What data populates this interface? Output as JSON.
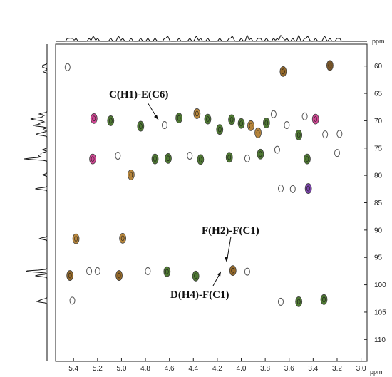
{
  "chart_data": {
    "type": "heatmap",
    "title": "",
    "xlabel": "ppm",
    "ylabel": "ppm",
    "x_axis": {
      "range": [
        5.55,
        2.95
      ],
      "reversed": true,
      "ticks": [
        5.4,
        5.2,
        5.0,
        4.8,
        4.6,
        4.4,
        4.2,
        4.0,
        3.8,
        3.6,
        3.4,
        3.2,
        3.0
      ]
    },
    "y_axis": {
      "range": [
        56,
        114
      ],
      "reversed": true,
      "ticks": [
        60,
        65,
        70,
        75,
        80,
        85,
        90,
        95,
        100,
        105,
        110
      ]
    },
    "grid": false,
    "cross_peaks": [
      {
        "h": 5.45,
        "c": 60.2,
        "color": "#7a7a7a"
      },
      {
        "h": 3.65,
        "c": 61.0,
        "color": "#8b5a14"
      },
      {
        "h": 3.26,
        "c": 59.9,
        "color": "#6b4412"
      },
      {
        "h": 5.23,
        "c": 69.6,
        "color": "#cc3388"
      },
      {
        "h": 5.09,
        "c": 70.0,
        "color": "#3b6a1c"
      },
      {
        "h": 4.84,
        "c": 71.0,
        "color": "#3b6a1c"
      },
      {
        "h": 4.64,
        "c": 70.8,
        "color": "#7a7a7a"
      },
      {
        "h": 4.52,
        "c": 69.5,
        "color": "#3b6a1c"
      },
      {
        "h": 4.37,
        "c": 68.7,
        "color": "#b07a28"
      },
      {
        "h": 4.28,
        "c": 69.7,
        "color": "#3b6a1c"
      },
      {
        "h": 4.18,
        "c": 71.6,
        "color": "#3b6a1c"
      },
      {
        "h": 4.08,
        "c": 69.8,
        "color": "#3b6a1c"
      },
      {
        "h": 4.0,
        "c": 70.5,
        "color": "#3b6a1c"
      },
      {
        "h": 3.92,
        "c": 70.9,
        "color": "#b07a28"
      },
      {
        "h": 3.86,
        "c": 72.2,
        "color": "#b07a28"
      },
      {
        "h": 3.79,
        "c": 70.4,
        "color": "#3b6a1c"
      },
      {
        "h": 3.73,
        "c": 68.8,
        "color": "#7a7a7a"
      },
      {
        "h": 3.62,
        "c": 70.8,
        "color": "#7a7a7a"
      },
      {
        "h": 3.52,
        "c": 72.6,
        "color": "#3b6a1c"
      },
      {
        "h": 3.47,
        "c": 69.2,
        "color": "#7a7a7a"
      },
      {
        "h": 3.38,
        "c": 69.7,
        "color": "#cc3388"
      },
      {
        "h": 3.3,
        "c": 72.5,
        "color": "#7a7a7a"
      },
      {
        "h": 3.18,
        "c": 72.4,
        "color": "#7a7a7a"
      },
      {
        "h": 5.24,
        "c": 77.0,
        "color": "#cc3388"
      },
      {
        "h": 5.03,
        "c": 76.4,
        "color": "#7a7a7a"
      },
      {
        "h": 4.72,
        "c": 77.0,
        "color": "#3b6a1c"
      },
      {
        "h": 4.61,
        "c": 76.9,
        "color": "#3b6a1c"
      },
      {
        "h": 4.43,
        "c": 76.4,
        "color": "#7a7a7a"
      },
      {
        "h": 4.34,
        "c": 77.1,
        "color": "#3b6a1c"
      },
      {
        "h": 4.1,
        "c": 76.7,
        "color": "#3b6a1c"
      },
      {
        "h": 3.95,
        "c": 76.9,
        "color": "#7a7a7a"
      },
      {
        "h": 3.84,
        "c": 76.1,
        "color": "#3b6a1c"
      },
      {
        "h": 3.7,
        "c": 75.3,
        "color": "#7a7a7a"
      },
      {
        "h": 3.45,
        "c": 77.0,
        "color": "#3b6a1c"
      },
      {
        "h": 3.2,
        "c": 75.9,
        "color": "#7a7a7a"
      },
      {
        "h": 4.92,
        "c": 79.9,
        "color": "#b07a28"
      },
      {
        "h": 3.44,
        "c": 82.4,
        "color": "#6b2fa0"
      },
      {
        "h": 3.57,
        "c": 82.5,
        "color": "#7a7a7a"
      },
      {
        "h": 3.67,
        "c": 82.4,
        "color": "#7a7a7a"
      },
      {
        "h": 5.38,
        "c": 91.6,
        "color": "#b07a28"
      },
      {
        "h": 4.99,
        "c": 91.5,
        "color": "#b07a28"
      },
      {
        "h": 5.43,
        "c": 98.3,
        "color": "#8b5a14"
      },
      {
        "h": 5.27,
        "c": 97.5,
        "color": "#7a7a7a"
      },
      {
        "h": 5.2,
        "c": 97.5,
        "color": "#7a7a7a"
      },
      {
        "h": 5.02,
        "c": 98.3,
        "color": "#8b5a14"
      },
      {
        "h": 4.78,
        "c": 97.5,
        "color": "#7a7a7a"
      },
      {
        "h": 4.62,
        "c": 97.6,
        "color": "#3b6a1c"
      },
      {
        "h": 4.38,
        "c": 98.4,
        "color": "#3b6a1c"
      },
      {
        "h": 4.07,
        "c": 97.4,
        "color": "#8b5a14"
      },
      {
        "h": 3.95,
        "c": 97.6,
        "color": "#7a7a7a"
      },
      {
        "h": 5.41,
        "c": 102.9,
        "color": "#7a7a7a"
      },
      {
        "h": 3.67,
        "c": 103.1,
        "color": "#7a7a7a"
      },
      {
        "h": 3.52,
        "c": 103.1,
        "color": "#3b6a1c"
      },
      {
        "h": 3.31,
        "c": 102.7,
        "color": "#3b6a1c"
      }
    ],
    "annotations": [
      {
        "text": "C(H1)-E(C6)",
        "target_h": 4.64,
        "target_c": 70.8
      },
      {
        "text": "F(H2)-F(C1)",
        "target_h": 4.07,
        "target_c": 97.0
      },
      {
        "text": "D(H4)-F(C1)",
        "target_h": 4.09,
        "target_c": 98.0
      }
    ]
  },
  "labels": {
    "top_ppm": "ppm",
    "bottom_ppm": "ppm",
    "annot_c1e6": "C(H1)-E(C6)",
    "annot_f2f1": "F(H2)-F(C1)",
    "annot_d4f1": "D(H4)-F(C1)"
  }
}
